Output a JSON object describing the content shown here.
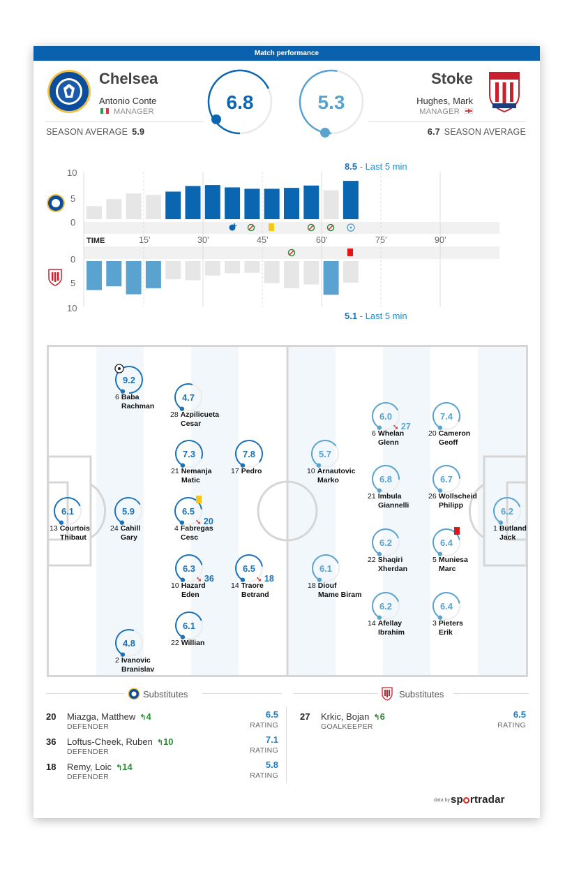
{
  "header": {
    "title": "Match performance"
  },
  "home": {
    "name": "Chelsea",
    "manager": "Antonio Conte",
    "manager_label": "MANAGER",
    "season_label": "SEASON AVERAGE",
    "season_avg": "5.9",
    "rating": "6.8",
    "rating_value": 6.8
  },
  "away": {
    "name": "Stoke",
    "manager": "Hughes, Mark",
    "manager_label": "MANAGER",
    "season_label": "SEASON AVERAGE",
    "season_avg": "6.7",
    "rating": "5.3",
    "rating_value": 5.3
  },
  "colors": {
    "home": "#0a66b0",
    "away": "#5aa3d0",
    "inactive": "#e6e6e6",
    "header": "#0a62ae"
  },
  "timeline": {
    "home_axis": [
      "10",
      "5",
      "0"
    ],
    "away_axis": [
      "0",
      "5",
      "10"
    ],
    "time_label": "TIME",
    "time_ticks": [
      "15’",
      "30’",
      "45’",
      "60’",
      "75’",
      "90’"
    ],
    "home_last5_value": "8.5",
    "home_last5_label": "- Last 5 min",
    "away_last5_value": "5.1",
    "away_last5_label": "- Last 5 min",
    "home_bars": [
      2.8,
      4.3,
      5.5,
      5.2,
      5.9,
      7.1,
      7.3,
      6.8,
      6.5,
      6.5,
      6.7,
      7.2,
      6.2,
      8.2
    ],
    "home_active": [
      false,
      false,
      false,
      false,
      true,
      true,
      true,
      true,
      true,
      true,
      true,
      true,
      false,
      true
    ],
    "away_bars": [
      6.2,
      5.4,
      7.1,
      5.8,
      3.9,
      4.1,
      3.1,
      2.6,
      2.5,
      4.7,
      5.8,
      5.0,
      7.2,
      4.6
    ],
    "away_active": [
      true,
      true,
      true,
      true,
      false,
      false,
      false,
      false,
      false,
      false,
      false,
      false,
      true,
      false
    ]
  },
  "chart_data": [
    {
      "type": "bar",
      "series": [
        {
          "name": "Chelsea",
          "values": [
            2.8,
            4.3,
            5.5,
            5.2,
            5.9,
            7.1,
            7.3,
            6.8,
            6.5,
            6.5,
            6.7,
            7.2,
            6.2,
            8.2
          ]
        },
        {
          "name": "Stoke",
          "values": [
            6.2,
            5.4,
            7.1,
            5.8,
            3.9,
            4.1,
            3.1,
            2.6,
            2.5,
            4.7,
            5.8,
            5.0,
            7.2,
            4.6
          ]
        }
      ],
      "xlabel": "TIME",
      "ylim": [
        0,
        10
      ]
    }
  ],
  "home_players": [
    {
      "num": "6",
      "name": "Baba\nRachman",
      "rating": "9.2",
      "value": 9.2,
      "goal": true
    },
    {
      "num": "28",
      "name": "Azpilicueta\nCesar",
      "rating": "4.7",
      "value": 4.7
    },
    {
      "num": "21",
      "name": "Nemanja\nMatic",
      "rating": "7.3",
      "value": 7.3
    },
    {
      "num": "17",
      "name": "Pedro",
      "rating": "7.8",
      "value": 7.8
    },
    {
      "num": "13",
      "name": "Courtois\nThibaut",
      "rating": "6.1",
      "value": 6.1
    },
    {
      "num": "24",
      "name": "Cahill\nGary",
      "rating": "5.9",
      "value": 5.9
    },
    {
      "num": "4",
      "name": "Fabregas\nCesc",
      "rating": "6.5",
      "value": 6.5,
      "yellow": true,
      "sub": "20"
    },
    {
      "num": "10",
      "name": "Hazard\nEden",
      "rating": "6.3",
      "value": 6.3,
      "sub": "36"
    },
    {
      "num": "14",
      "name": "Traore\nBetrand",
      "rating": "6.5",
      "value": 6.5,
      "sub": "18"
    },
    {
      "num": "22",
      "name": "Willian",
      "rating": "6.1",
      "value": 6.1
    },
    {
      "num": "2",
      "name": "Ivanovic\nBranislav",
      "rating": "4.8",
      "value": 4.8
    }
  ],
  "away_players": [
    {
      "num": "6",
      "name": "Whelan\nGlenn",
      "rating": "6.0",
      "value": 6.0,
      "sub": "27"
    },
    {
      "num": "20",
      "name": "Cameron\nGeoff",
      "rating": "7.4",
      "value": 7.4
    },
    {
      "num": "10",
      "name": "Arnautovic\nMarko",
      "rating": "5.7",
      "value": 5.7
    },
    {
      "num": "21",
      "name": "Imbula\nGiannelli",
      "rating": "6.8",
      "value": 6.8
    },
    {
      "num": "26",
      "name": "Wollscheid\nPhilipp",
      "rating": "6.7",
      "value": 6.7
    },
    {
      "num": "1",
      "name": "Butland\nJack",
      "rating": "6.2",
      "value": 6.2
    },
    {
      "num": "22",
      "name": "Shaqiri\nXherdan",
      "rating": "6.2",
      "value": 6.2
    },
    {
      "num": "5",
      "name": "Muniesa\nMarc",
      "rating": "6.4",
      "value": 6.4,
      "red": true
    },
    {
      "num": "18",
      "name": "Diouf\nMame Biram",
      "rating": "6.1",
      "value": 6.1
    },
    {
      "num": "14",
      "name": "Afellay\nIbrahim",
      "rating": "6.2",
      "value": 6.2
    },
    {
      "num": "3",
      "name": "Pieters\nErik",
      "rating": "6.4",
      "value": 6.4
    }
  ],
  "subs": {
    "title": "Substitutes",
    "rating_label": "RATING",
    "home": [
      {
        "num": "20",
        "name": "Miazga, Matthew",
        "in": "4",
        "pos": "DEFENDER",
        "rating": "6.5"
      },
      {
        "num": "36",
        "name": "Loftus-Cheek, Ruben",
        "in": "10",
        "pos": "DEFENDER",
        "rating": "7.1"
      },
      {
        "num": "18",
        "name": "Remy, Loic",
        "in": "14",
        "pos": "DEFENDER",
        "rating": "5.8"
      }
    ],
    "away": [
      {
        "num": "27",
        "name": "Krkic, Bojan",
        "in": "6",
        "pos": "GOALKEEPER",
        "rating": "6.5"
      }
    ]
  },
  "footer": {
    "data_by": "data by",
    "brand_a": "sp",
    "brand_b": "rt",
    "brand_c": "radar"
  }
}
